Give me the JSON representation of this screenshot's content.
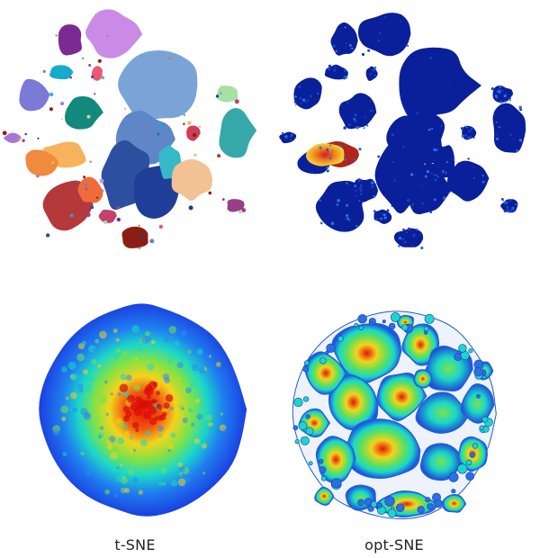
{
  "captions": {
    "left": "t-SNE",
    "right": "opt-SNE"
  },
  "colors": {
    "cluster_palette": [
      "#7a2a91",
      "#c98be6",
      "#7b7ad6",
      "#19a9cf",
      "#12897a",
      "#7aa4d8",
      "#5f86c6",
      "#2d4fa0",
      "#1f3e97",
      "#35b8c9",
      "#f2c194",
      "#f6b35b",
      "#f08a3c",
      "#b5393a",
      "#ee6b3a",
      "#c2426b",
      "#8b1e12",
      "#36a8a9",
      "#a8e0a4",
      "#9a3f86",
      "#a47ad0",
      "#cf3e55",
      "#e85a74"
    ],
    "heat_low": "#0a1f9a",
    "heat_mid": "#1bd7c8",
    "heat_high": "#e8150c"
  }
}
